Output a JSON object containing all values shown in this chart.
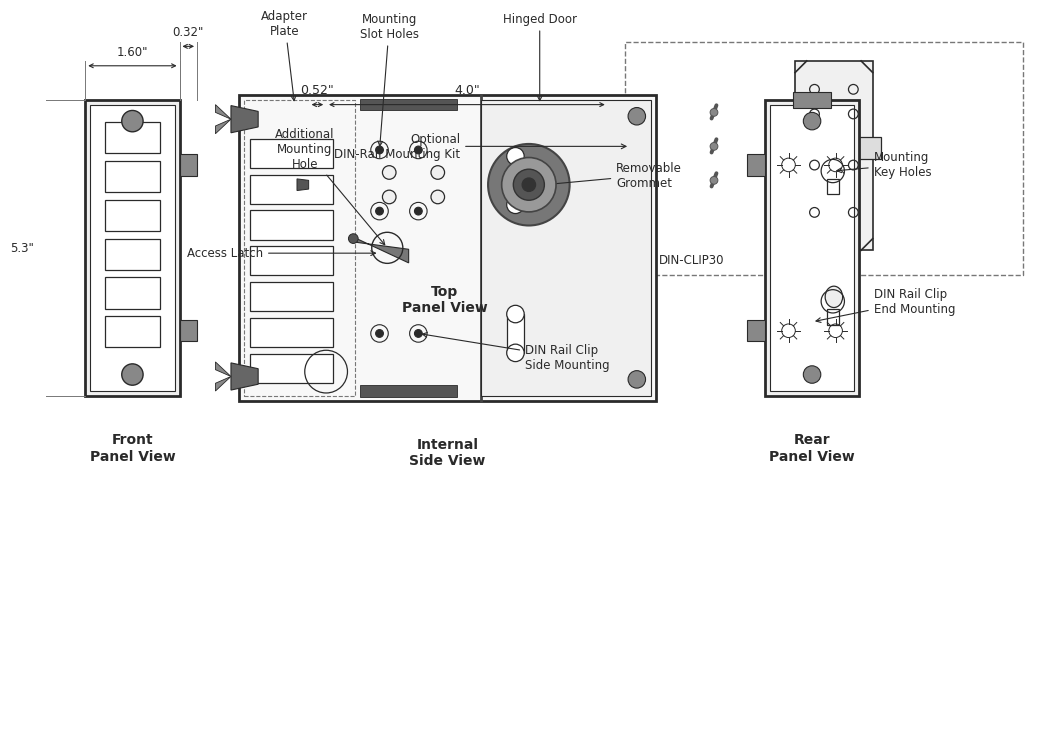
{
  "bg_color": "#ffffff",
  "line_color": "#2a2a2a",
  "dark_gray": "#555555",
  "medium_gray": "#777777",
  "fill_gray": "#888888",
  "light_gray": "#cccccc",
  "top_view_label": "Top\nPanel View",
  "front_view_label": "Front\nPanel View",
  "internal_view_label": "Internal\nSide View",
  "rear_view_label": "Rear\nPanel View",
  "din_clip_label": "DIN-CLIP30",
  "access_latch_label": "Access Latch",
  "removable_grommet_label": "Removable\nGrommet",
  "optional_label": "Optional\nDIN-Rail Mounting Kit",
  "adapter_plate_label": "Adapter\nPlate",
  "additional_hole_label": "Additional\nMounting\nHole",
  "mounting_slots_label": "Mounting\nSlot Holes",
  "hinged_door_label": "Hinged Door",
  "din_rail_side_label": "DIN Rail Clip\nSide Mounting",
  "mounting_key_label": "Mounting\nKey Holes",
  "din_rail_end_label": "DIN Rail Clip\nEnd Mounting",
  "dim_width_top": "4.0\"",
  "dim_depth_top": "0.52\"",
  "dim_height_front": "5.3\"",
  "dim_width_front": "1.60\"",
  "dim_tab_front": "0.32\""
}
